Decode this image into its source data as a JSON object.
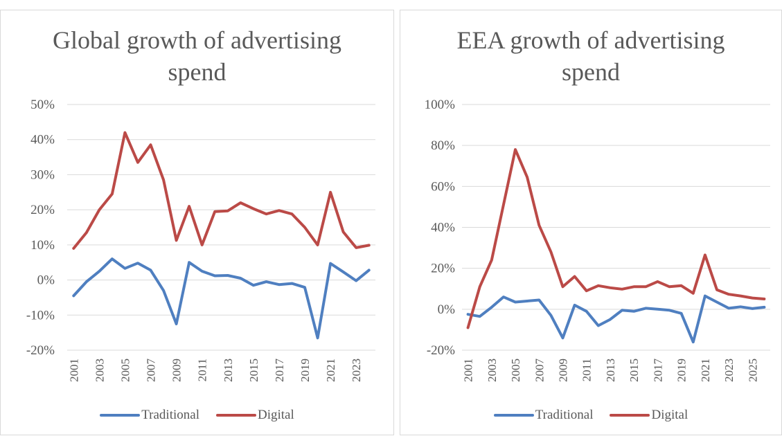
{
  "colors": {
    "traditional": "#4f7fc0",
    "digital": "#bb4a47",
    "grid": "#d9d9d9",
    "text": "#595959"
  },
  "chart_data": [
    {
      "type": "line",
      "title": "Global growth of advertising spend",
      "xlabel": "",
      "ylabel": "",
      "ylim": [
        -20,
        50
      ],
      "yticks": [
        "-20%",
        "-10%",
        "0%",
        "10%",
        "20%",
        "30%",
        "40%",
        "50%"
      ],
      "ytick_values": [
        -20,
        -10,
        0,
        10,
        20,
        30,
        40,
        50
      ],
      "x": [
        "2001",
        "2002",
        "2003",
        "2004",
        "2005",
        "2006",
        "2007",
        "2008",
        "2009",
        "2010",
        "2011",
        "2012",
        "2013",
        "2014",
        "2015",
        "2016",
        "2017",
        "2018",
        "2019",
        "2020",
        "2021",
        "2022",
        "2023",
        "2024"
      ],
      "xtick_labels": [
        "2001",
        "",
        "2003",
        "",
        "2005",
        "",
        "2007",
        "",
        "2009",
        "",
        "2011",
        "",
        "2013",
        "",
        "2015",
        "",
        "2017",
        "",
        "2019",
        "",
        "2021",
        "",
        "2023",
        ""
      ],
      "grid": true,
      "legend_position": "bottom",
      "series": [
        {
          "name": "Traditional",
          "color_key": "traditional",
          "values": [
            -4.5,
            -0.5,
            2.5,
            6,
            3.3,
            4.8,
            2.8,
            -3,
            -12.5,
            5,
            2.5,
            1.2,
            1.3,
            0.5,
            -1.5,
            -0.5,
            -1.3,
            -1,
            -2.1,
            -16.5,
            4.7,
            2.3,
            -0.2,
            2.8
          ]
        },
        {
          "name": "Digital",
          "color_key": "digital",
          "values": [
            9,
            13.5,
            20,
            24.5,
            42,
            33.5,
            38.5,
            28.5,
            11.3,
            21,
            10,
            19.5,
            19.7,
            22,
            20.3,
            18.8,
            19.8,
            18.8,
            15,
            10,
            25,
            13.7,
            9.2,
            9.9
          ]
        }
      ]
    },
    {
      "type": "line",
      "title": "EEA growth of advertising spend",
      "xlabel": "",
      "ylabel": "",
      "ylim": [
        -20,
        100
      ],
      "yticks": [
        "-20%",
        "0%",
        "20%",
        "40%",
        "60%",
        "80%",
        "100%"
      ],
      "ytick_values": [
        -20,
        0,
        20,
        40,
        60,
        80,
        100
      ],
      "x": [
        "2001",
        "2002",
        "2003",
        "2004",
        "2005",
        "2006",
        "2007",
        "2008",
        "2009",
        "2010",
        "2011",
        "2012",
        "2013",
        "2014",
        "2015",
        "2016",
        "2017",
        "2018",
        "2019",
        "2020",
        "2021",
        "2022",
        "2023",
        "2024",
        "2025",
        "2026"
      ],
      "xtick_labels": [
        "2001",
        "",
        "2003",
        "",
        "2005",
        "",
        "2007",
        "",
        "2009",
        "",
        "2011",
        "",
        "2013",
        "",
        "2015",
        "",
        "2017",
        "",
        "2019",
        "",
        "2021",
        "",
        "2023",
        "",
        "2025",
        ""
      ],
      "grid": true,
      "legend_position": "bottom",
      "series": [
        {
          "name": "Traditional",
          "color_key": "traditional",
          "values": [
            -2.5,
            -3.5,
            1,
            6,
            3.5,
            4,
            4.5,
            -3,
            -14,
            2,
            -1,
            -8,
            -5,
            -0.5,
            -1,
            0.5,
            0,
            -0.5,
            -2,
            -16,
            6.5,
            3.5,
            0.5,
            1.2,
            0.3,
            1
          ]
        },
        {
          "name": "Digital",
          "color_key": "digital",
          "values": [
            -9,
            11,
            24,
            51,
            78,
            64.5,
            41,
            28,
            11,
            16,
            9,
            11.5,
            10.5,
            9.8,
            11,
            11,
            13.5,
            11,
            11.5,
            7.8,
            26.5,
            9.5,
            7.3,
            6.5,
            5.5,
            5
          ]
        }
      ]
    }
  ]
}
